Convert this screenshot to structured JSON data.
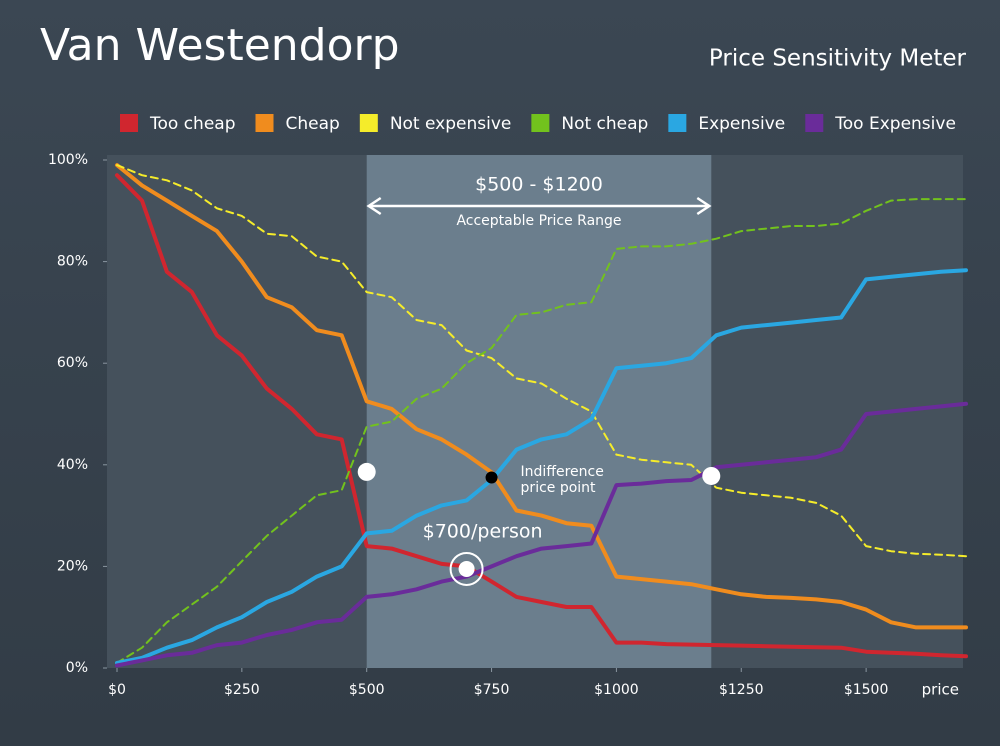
{
  "chart_data": {
    "type": "line",
    "title": "Van Westendorp",
    "subtitle": "Price Sensitivity Meter",
    "x_label": "price",
    "xlim": [
      -20,
      1700
    ],
    "ylim": [
      0,
      100
    ],
    "xticks": [
      {
        "value": 0,
        "label": "$0"
      },
      {
        "value": 250,
        "label": "$250"
      },
      {
        "value": 500,
        "label": "$500"
      },
      {
        "value": 750,
        "label": "$750"
      },
      {
        "value": 1000,
        "label": "$1000"
      },
      {
        "value": 1250,
        "label": "$1250"
      },
      {
        "value": 1500,
        "label": "$1500"
      }
    ],
    "yticks": [
      {
        "value": 0,
        "label": "0%"
      },
      {
        "value": 20,
        "label": "20%"
      },
      {
        "value": 40,
        "label": "40%"
      },
      {
        "value": 60,
        "label": "60%"
      },
      {
        "value": 80,
        "label": "80%"
      },
      {
        "value": 100,
        "label": "100%"
      }
    ],
    "x": [
      0,
      50,
      100,
      150,
      200,
      250,
      300,
      350,
      400,
      450,
      500,
      550,
      600,
      650,
      700,
      750,
      800,
      850,
      900,
      950,
      1000,
      1050,
      1100,
      1150,
      1200,
      1250,
      1300,
      1350,
      1400,
      1450,
      1500,
      1550,
      1600,
      1650,
      1700
    ],
    "series": [
      {
        "name": "Too cheap",
        "color": "#d0262f",
        "dashed": false,
        "values": [
          97,
          92,
          78,
          74,
          65.5,
          61.5,
          55,
          51,
          46,
          45,
          24,
          23.5,
          22,
          20.5,
          20,
          17,
          14,
          13,
          12,
          12,
          5,
          5,
          4.7,
          4.6,
          4.5,
          4.4,
          4.3,
          4.2,
          4.1,
          4,
          3.2,
          3,
          2.8,
          2.5,
          2.3
        ]
      },
      {
        "name": "Cheap",
        "color": "#f08c1e",
        "dashed": false,
        "values": [
          99,
          95,
          92,
          89,
          86,
          80,
          73,
          71,
          66.5,
          65.5,
          52.5,
          51,
          47,
          45,
          42,
          38.5,
          31,
          30,
          28.5,
          28,
          18,
          17.5,
          17,
          16.5,
          15.5,
          14.5,
          14,
          13.8,
          13.5,
          13,
          11.5,
          9,
          8,
          8,
          8
        ]
      },
      {
        "name": "Not expensive",
        "color": "#f5ec2a",
        "dashed": true,
        "values": [
          99,
          97,
          96,
          94,
          90.5,
          89,
          85.5,
          85,
          81,
          80,
          74,
          73,
          68.5,
          67.5,
          62.5,
          61,
          57,
          56,
          53,
          50.5,
          42,
          41,
          40.5,
          40,
          35.5,
          34.5,
          34,
          33.5,
          32.5,
          30,
          24,
          23,
          22.5,
          22.3,
          22
        ]
      },
      {
        "name": "Not cheap",
        "color": "#72c21d",
        "dashed": true,
        "values": [
          1,
          4,
          9,
          12.5,
          16,
          21,
          26,
          30,
          34,
          35,
          47.5,
          48.5,
          53,
          55,
          60,
          63,
          69.5,
          70,
          71.5,
          72,
          82.5,
          83,
          83,
          83.5,
          84.5,
          86,
          86.5,
          87,
          87,
          87.5,
          90,
          92,
          92.3,
          92.3,
          92.3
        ]
      },
      {
        "name": "Expensive",
        "color": "#2aa7e2",
        "dashed": false,
        "values": [
          1,
          2,
          4,
          5.5,
          8,
          10,
          13,
          15,
          18,
          20,
          26.5,
          27,
          30,
          32,
          33,
          37,
          43,
          45,
          46,
          49,
          59,
          59.5,
          60,
          61,
          65.5,
          67,
          67.5,
          68,
          68.5,
          69,
          76.5,
          77,
          77.5,
          78,
          78.3
        ]
      },
      {
        "name": "Too Expensive",
        "color": "#6a2c9a",
        "dashed": false,
        "values": [
          0.5,
          1.5,
          2.5,
          3,
          4.5,
          5,
          6.5,
          7.5,
          9,
          9.5,
          14,
          14.5,
          15.5,
          17,
          18,
          20,
          22,
          23.5,
          24,
          24.5,
          36,
          36.3,
          36.8,
          37,
          39.5,
          40,
          40.5,
          41,
          41.5,
          43,
          50,
          50.5,
          51,
          51.5,
          52
        ]
      }
    ],
    "acceptable_range": [
      500,
      1190
    ],
    "range_label": "$500 - $1200",
    "range_sublabel": "Acceptable Price Range",
    "markers": [
      {
        "x": 500,
        "y": 38.6
      },
      {
        "x": 1190,
        "y": 37.8
      },
      {
        "x": 750,
        "y": 37.5
      },
      {
        "x": 700,
        "y": 19.5
      }
    ],
    "indifference_label": [
      "Indifference",
      "price point"
    ],
    "optimal_label": "$700/person"
  }
}
